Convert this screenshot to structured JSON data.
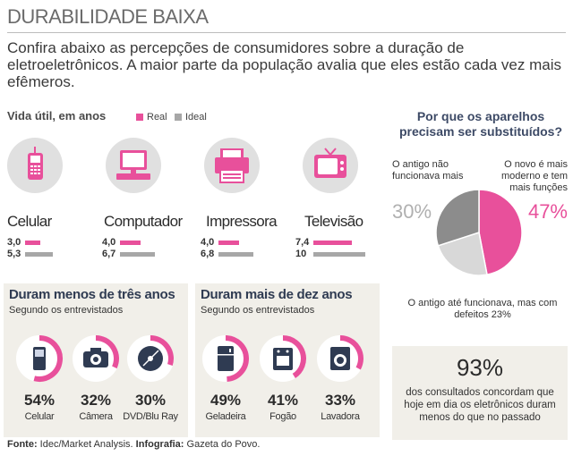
{
  "header": {
    "title": "DURABILIDADE BAIXA",
    "intro": "Confira abaixo as percepções de consumidores sobre a duração de eletroeletrônicos. A maior parte da população avalia que eles estão cada vez mais efêmeros."
  },
  "colors": {
    "pink": "#e8509b",
    "gray": "#a7a7a7",
    "light_gray": "#d8d8d8",
    "dark_gray": "#8c8c8c",
    "navy": "#2f3b52",
    "panel": "#f1efe9"
  },
  "lifespan": {
    "heading": "Vida útil, em anos",
    "legend_real": "Real",
    "legend_ideal": "Ideal",
    "devices": [
      {
        "name": "Celular",
        "real_label": "3,0",
        "ideal_label": "5,3"
      },
      {
        "name": "Computador",
        "real_label": "4,0",
        "ideal_label": "6,7"
      },
      {
        "name": "Impressora",
        "real_label": "4,0",
        "ideal_label": "6,8"
      },
      {
        "name": "Televisão",
        "real_label": "7,4",
        "ideal_label": "10"
      }
    ]
  },
  "less_than_three": {
    "title": "Duram menos de três anos",
    "subtitle": "Segundo os entrevistados",
    "items": [
      {
        "percent": "54%",
        "label": "Celular"
      },
      {
        "percent": "32%",
        "label": "Câmera"
      },
      {
        "percent": "30%",
        "label": "DVD/Blu Ray"
      }
    ]
  },
  "more_than_ten": {
    "title": "Duram mais de dez anos",
    "subtitle": "Segundo os entrevistados",
    "items": [
      {
        "percent": "49%",
        "label": "Geladeira"
      },
      {
        "percent": "41%",
        "label": "Fogão"
      },
      {
        "percent": "33%",
        "label": "Lavadora"
      }
    ]
  },
  "why": {
    "heading": "Por que os aparelhos precisam ser substituídos?",
    "reason_old_not_working": "O antigo não funcionava mais",
    "reason_old_not_working_pct": "30%",
    "reason_new_better": "O novo é mais moderno e tem mais funções",
    "reason_new_better_pct": "47%",
    "reason_defects": "O antigo até funcionava, mas com defeitos 23%"
  },
  "stat": {
    "value": "93%",
    "text": "dos consultados concordam que hoje em dia os eletrônicos duram menos do que no passado"
  },
  "source": {
    "label": "Fonte:",
    "text": "Idec/Market Analysis.",
    "credit_label": "Infografia:",
    "credit_text": "Gazeta do Povo."
  },
  "chart_data": [
    {
      "type": "bar",
      "title": "Vida útil, em anos",
      "categories": [
        "Celular",
        "Computador",
        "Impressora",
        "Televisão"
      ],
      "series": [
        {
          "name": "Real",
          "values": [
            3.0,
            4.0,
            4.0,
            7.4
          ]
        },
        {
          "name": "Ideal",
          "values": [
            5.3,
            6.7,
            6.8,
            10
          ]
        }
      ],
      "ylim": [
        0,
        10
      ]
    },
    {
      "type": "pie",
      "title": "Por que os aparelhos precisam ser substituídos?",
      "categories": [
        "O novo é mais moderno e tem mais funções",
        "O antigo até funcionava, mas com defeitos",
        "O antigo não funcionava mais"
      ],
      "values": [
        47,
        23,
        30
      ]
    },
    {
      "type": "pie",
      "title": "Duram menos de três anos",
      "categories": [
        "Celular",
        "Câmera",
        "DVD/Blu Ray"
      ],
      "values": [
        54,
        32,
        30
      ]
    },
    {
      "type": "pie",
      "title": "Duram mais de dez anos",
      "categories": [
        "Geladeira",
        "Fogão",
        "Lavadora"
      ],
      "values": [
        49,
        41,
        33
      ]
    }
  ]
}
